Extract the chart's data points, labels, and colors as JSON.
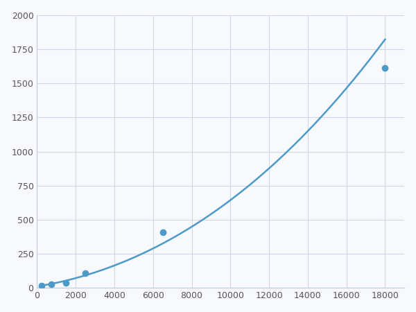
{
  "x_data": [
    250,
    750,
    1500,
    2500,
    6500,
    18000
  ],
  "y_data": [
    20,
    30,
    40,
    110,
    410,
    1610
  ],
  "line_color": "#4B9AC7",
  "marker_color": "#4B9AC7",
  "marker_size": 6,
  "xlim": [
    0,
    19000
  ],
  "ylim": [
    0,
    2000
  ],
  "xticks": [
    0,
    2000,
    4000,
    6000,
    8000,
    10000,
    12000,
    14000,
    16000,
    18000
  ],
  "yticks": [
    0,
    250,
    500,
    750,
    1000,
    1250,
    1500,
    1750,
    2000
  ],
  "grid_color": "#cdd8e8",
  "background_color": "#f8f9fc",
  "figsize": [
    6.0,
    4.5
  ],
  "dpi": 100
}
